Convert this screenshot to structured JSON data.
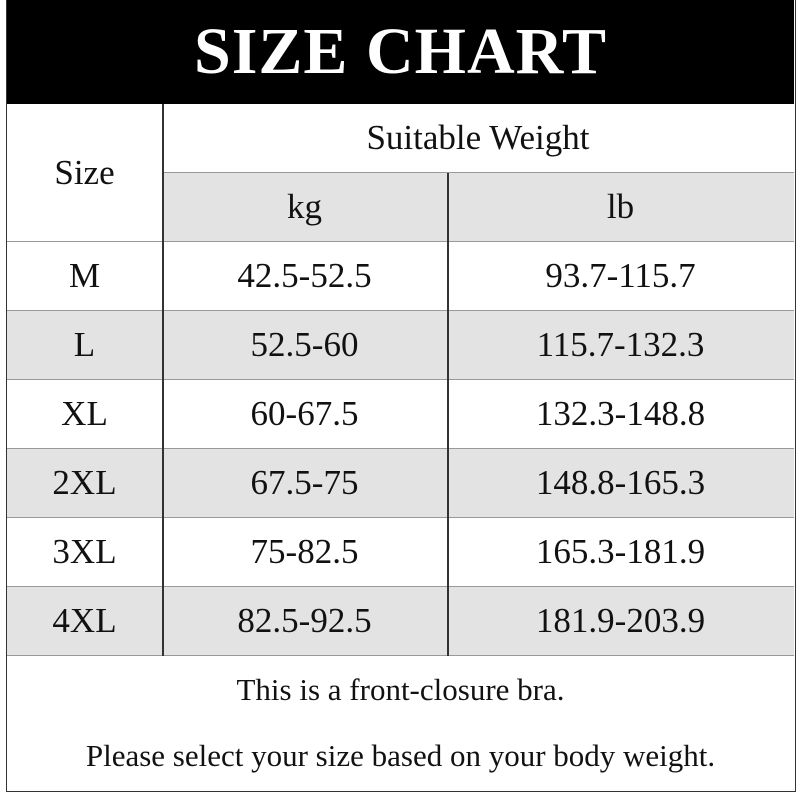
{
  "title": "SIZE CHART",
  "header": {
    "size": "Size",
    "group": "Suitable Weight",
    "kg": "kg",
    "lb": "lb"
  },
  "rows": [
    {
      "size": "M",
      "kg": "42.5-52.5",
      "lb": "93.7-115.7"
    },
    {
      "size": "L",
      "kg": "52.5-60",
      "lb": "115.7-132.3"
    },
    {
      "size": "XL",
      "kg": "60-67.5",
      "lb": "132.3-148.8"
    },
    {
      "size": "2XL",
      "kg": "67.5-75",
      "lb": "148.8-165.3"
    },
    {
      "size": "3XL",
      "kg": "75-82.5",
      "lb": "165.3-181.9"
    },
    {
      "size": "4XL",
      "kg": "82.5-92.5",
      "lb": "181.9-203.9"
    }
  ],
  "notes": [
    "This is a front-closure bra.",
    "Please select your size based on your body weight."
  ],
  "colors": {
    "header_bg": "#000000",
    "stripe": "#e3e3e3"
  }
}
